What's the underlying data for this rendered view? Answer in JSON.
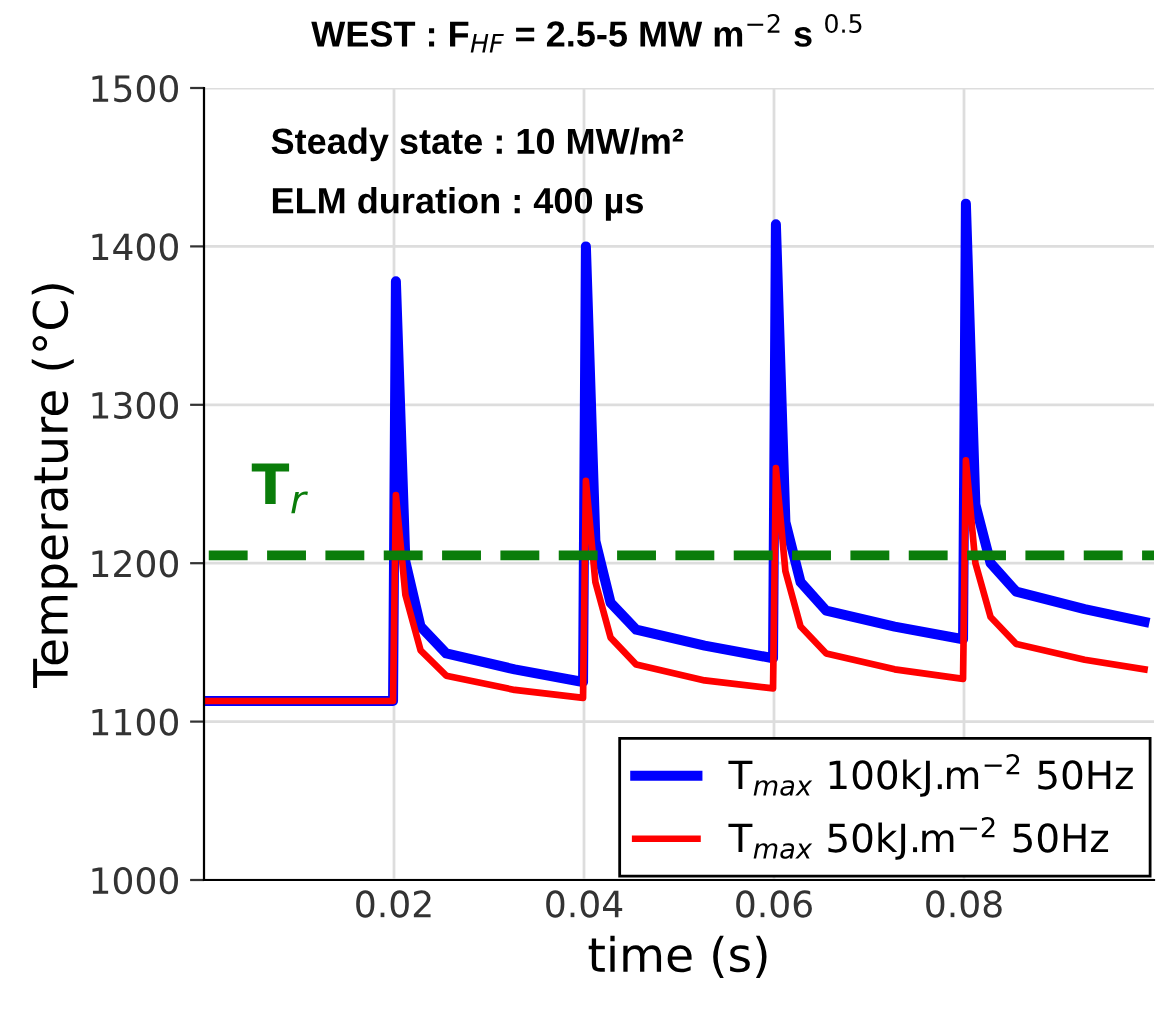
{
  "chart_data": {
    "type": "line",
    "title": "WEST : F$_{HF}$ = 2.5-5 MW m$^{−2}$ s $^{0.5}$",
    "xlabel": "time (s)",
    "ylabel": "Temperature (°C)",
    "annotations": [
      "Steady state : 10 MW/m²",
      "ELM duration : 400 µs"
    ],
    "x": [
      0,
      0.0199,
      0.0202,
      0.0212,
      0.0228,
      0.0255,
      0.0327,
      0.0399,
      0.0402,
      0.0412,
      0.0428,
      0.0455,
      0.0527,
      0.0599,
      0.0602,
      0.0612,
      0.0628,
      0.0655,
      0.0727,
      0.0799,
      0.0802,
      0.0812,
      0.0828,
      0.0855,
      0.0927,
      0.099
    ],
    "series": [
      {
        "name": "T$_{max}$ 100kJ.m$^{−2}$ 50Hz",
        "color": "#0000ff",
        "values": [
          1113,
          1113,
          1378,
          1201,
          1160,
          1143,
          1133,
          1125,
          1400,
          1214,
          1175,
          1158,
          1148,
          1140,
          1414,
          1226,
          1188,
          1170,
          1160,
          1152,
          1427,
          1237,
          1200,
          1182,
          1171,
          1163
        ]
      },
      {
        "name": "T$_{max}$ 50kJ.m$^{−2}$ 50Hz",
        "color": "#ff0000",
        "values": [
          1113,
          1113,
          1243,
          1180,
          1145,
          1129,
          1120,
          1115,
          1252,
          1188,
          1153,
          1136,
          1126,
          1121,
          1260,
          1195,
          1160,
          1143,
          1133,
          1127,
          1265,
          1200,
          1166,
          1149,
          1139,
          1133
        ]
      }
    ],
    "ref_lines": [
      {
        "axis": "y",
        "value": 1205,
        "label": "T$_{r}$",
        "color": "#0a7d0a",
        "line_style": "dashed"
      }
    ],
    "xlim": [
      0,
      0.1
    ],
    "ylim": [
      1000,
      1500
    ],
    "xticks": [
      0.02,
      0.04,
      0.06,
      0.08
    ],
    "yticks": [
      1000,
      1100,
      1200,
      1300,
      1400,
      1500
    ],
    "grid": true,
    "legend": "bottom right"
  }
}
